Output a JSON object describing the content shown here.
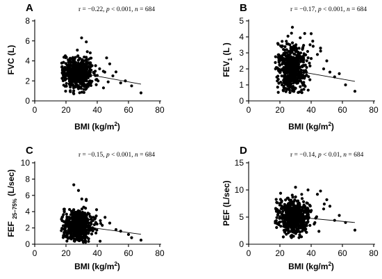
{
  "chart_data": [
    {
      "type": "scatter",
      "panel": "A",
      "stats": "r = −0.22, p < 0.001, n = 684",
      "stats_parts": {
        "r": "r = −0.22, ",
        "p": "p",
        "pv": " < 0.001, ",
        "n": "n",
        "nv": " = 684"
      },
      "xlabel": "BMI (kg/m2)",
      "xlabel_parts": {
        "main": "BMI (kg/m",
        "sup": "2",
        "end": ")"
      },
      "ylabel": "FVC (L)",
      "ylabel_parts": {
        "main": "FVC (L)",
        "sub": "",
        "end": ""
      },
      "xlim": [
        0,
        80
      ],
      "ylim": [
        0,
        8
      ],
      "xticks": [
        0,
        20,
        40,
        60,
        80
      ],
      "yticks": [
        0,
        2,
        4,
        6,
        8
      ],
      "fit": {
        "x": [
          20,
          68
        ],
        "y": [
          3.05,
          1.67
        ]
      },
      "cluster": {
        "cx": 28,
        "cy": 2.75,
        "sx": 5.0,
        "sy": 0.75,
        "n": 560,
        "xmin": 17,
        "xmax": 52,
        "ymin": 0.7,
        "ymax": 6.2
      },
      "outliers": [
        [
          46,
          4.3
        ],
        [
          48,
          3.7
        ],
        [
          50,
          2.5
        ],
        [
          52,
          2.9
        ],
        [
          55,
          1.8
        ],
        [
          58,
          2.0
        ],
        [
          62,
          1.5
        ],
        [
          68,
          0.8
        ],
        [
          33,
          5.9
        ],
        [
          30,
          6.3
        ],
        [
          44,
          1.3
        ],
        [
          47,
          1.9
        ]
      ]
    },
    {
      "type": "scatter",
      "panel": "B",
      "stats": "r = −0.17, p < 0.001, n = 684",
      "stats_parts": {
        "r": "r = −0.17, ",
        "p": "p",
        "pv": " < 0.001, ",
        "n": "n",
        "nv": " = 684"
      },
      "xlabel": "BMI (kg/m2)",
      "xlabel_parts": {
        "main": "BMI (kg/m",
        "sup": "2",
        "end": ")"
      },
      "ylabel": "FEV1 (L)",
      "ylabel_parts": {
        "main": "FEV",
        "sub": "1",
        "end": " (L )"
      },
      "xlim": [
        0,
        80
      ],
      "ylim": [
        0,
        5
      ],
      "xticks": [
        0,
        20,
        40,
        60,
        80
      ],
      "yticks": [
        0,
        1,
        2,
        3,
        4,
        5
      ],
      "fit": {
        "x": [
          20,
          68
        ],
        "y": [
          2.05,
          1.22
        ]
      },
      "cluster": {
        "cx": 28,
        "cy": 2.0,
        "sx": 5.0,
        "sy": 0.75,
        "n": 560,
        "xmin": 17,
        "xmax": 52,
        "ymin": 0.5,
        "ymax": 4.6
      },
      "outliers": [
        [
          46,
          3.3
        ],
        [
          50,
          2.5
        ],
        [
          52,
          1.8
        ],
        [
          55,
          1.5
        ],
        [
          58,
          1.7
        ],
        [
          62,
          1.0
        ],
        [
          68,
          0.6
        ],
        [
          40,
          4.2
        ],
        [
          28,
          4.6
        ],
        [
          44,
          2.9
        ],
        [
          48,
          2.0
        ]
      ]
    },
    {
      "type": "scatter",
      "panel": "C",
      "stats": "r = −0.15, p < 0.001, n = 684",
      "stats_parts": {
        "r": "r = −0.15, ",
        "p": "p",
        "pv": " < 0.001, ",
        "n": "n",
        "nv": " = 684"
      },
      "xlabel": "BMI (kg/m2)",
      "xlabel_parts": {
        "main": "BMI (kg/m",
        "sup": "2",
        "end": ")"
      },
      "ylabel": "FEF 25–75% (L/sec)",
      "ylabel_parts": {
        "main": "FEF ",
        "sub": "25–75%",
        "end": " (L/sec)"
      },
      "xlim": [
        0,
        80
      ],
      "ylim": [
        0,
        10
      ],
      "xticks": [
        0,
        20,
        40,
        60,
        80
      ],
      "yticks": [
        0,
        2,
        4,
        6,
        8,
        10
      ],
      "fit": {
        "x": [
          20,
          68
        ],
        "y": [
          2.45,
          1.22
        ]
      },
      "cluster": {
        "cx": 28,
        "cy": 2.2,
        "sx": 5.0,
        "sy": 1.0,
        "n": 560,
        "xmin": 17,
        "xmax": 52,
        "ymin": 0.2,
        "ymax": 7.4
      },
      "outliers": [
        [
          45,
          3.3
        ],
        [
          48,
          2.6
        ],
        [
          52,
          1.8
        ],
        [
          55,
          1.6
        ],
        [
          60,
          1.2
        ],
        [
          62,
          0.8
        ],
        [
          68,
          0.5
        ],
        [
          25,
          7.3
        ],
        [
          28,
          6.6
        ],
        [
          33,
          5.5
        ],
        [
          42,
          2.9
        ]
      ]
    },
    {
      "type": "scatter",
      "panel": "D",
      "stats": "r = −0.14, p < 0.01, n = 684",
      "stats_parts": {
        "r": "r = −0.14, ",
        "p": "p",
        "pv": " < 0.01, ",
        "n": "n",
        "nv": " = 684"
      },
      "xlabel": "BMI (kg/m2)",
      "xlabel_parts": {
        "main": "BMI (kg/m",
        "sup": "2",
        "end": ")"
      },
      "ylabel": "PEF (L/sec)",
      "ylabel_parts": {
        "main": "PEF (L/sec)",
        "sub": "",
        "end": ""
      },
      "xlim": [
        0,
        80
      ],
      "ylim": [
        0,
        15
      ],
      "xticks": [
        0,
        20,
        40,
        60,
        80
      ],
      "yticks": [
        0,
        5,
        10,
        15
      ],
      "fit": {
        "x": [
          20,
          68
        ],
        "y": [
          5.3,
          4.0
        ]
      },
      "cluster": {
        "cx": 29,
        "cy": 5.0,
        "sx": 5.0,
        "sy": 1.5,
        "n": 560,
        "xmin": 17,
        "xmax": 52,
        "ymin": 1.2,
        "ymax": 10.6
      },
      "outliers": [
        [
          46,
          9.8
        ],
        [
          48,
          6.5
        ],
        [
          50,
          8.2
        ],
        [
          52,
          7.0
        ],
        [
          55,
          4.4
        ],
        [
          58,
          5.3
        ],
        [
          62,
          4.0
        ],
        [
          68,
          2.6
        ],
        [
          44,
          9.2
        ],
        [
          30,
          10.5
        ],
        [
          38,
          10.0
        ]
      ]
    }
  ]
}
